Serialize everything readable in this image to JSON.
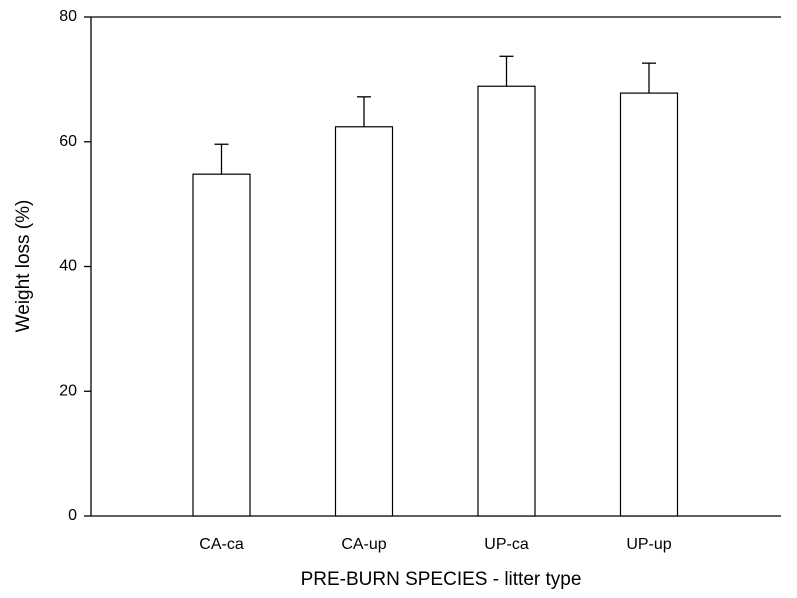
{
  "chart_data": {
    "type": "bar",
    "x_label": "PRE-BURN SPECIES - litter type",
    "y_label": "Weight loss (%)",
    "categories": [
      "CA-ca",
      "CA-up",
      "UP-ca",
      "UP-up"
    ],
    "values": [
      54.8,
      62.4,
      68.9,
      67.8
    ],
    "errors": [
      4.8,
      4.8,
      4.8,
      4.8
    ],
    "color": "#ffffff",
    "ylim": [
      0,
      80
    ],
    "yticks": [
      0,
      20,
      40,
      60,
      80
    ]
  }
}
